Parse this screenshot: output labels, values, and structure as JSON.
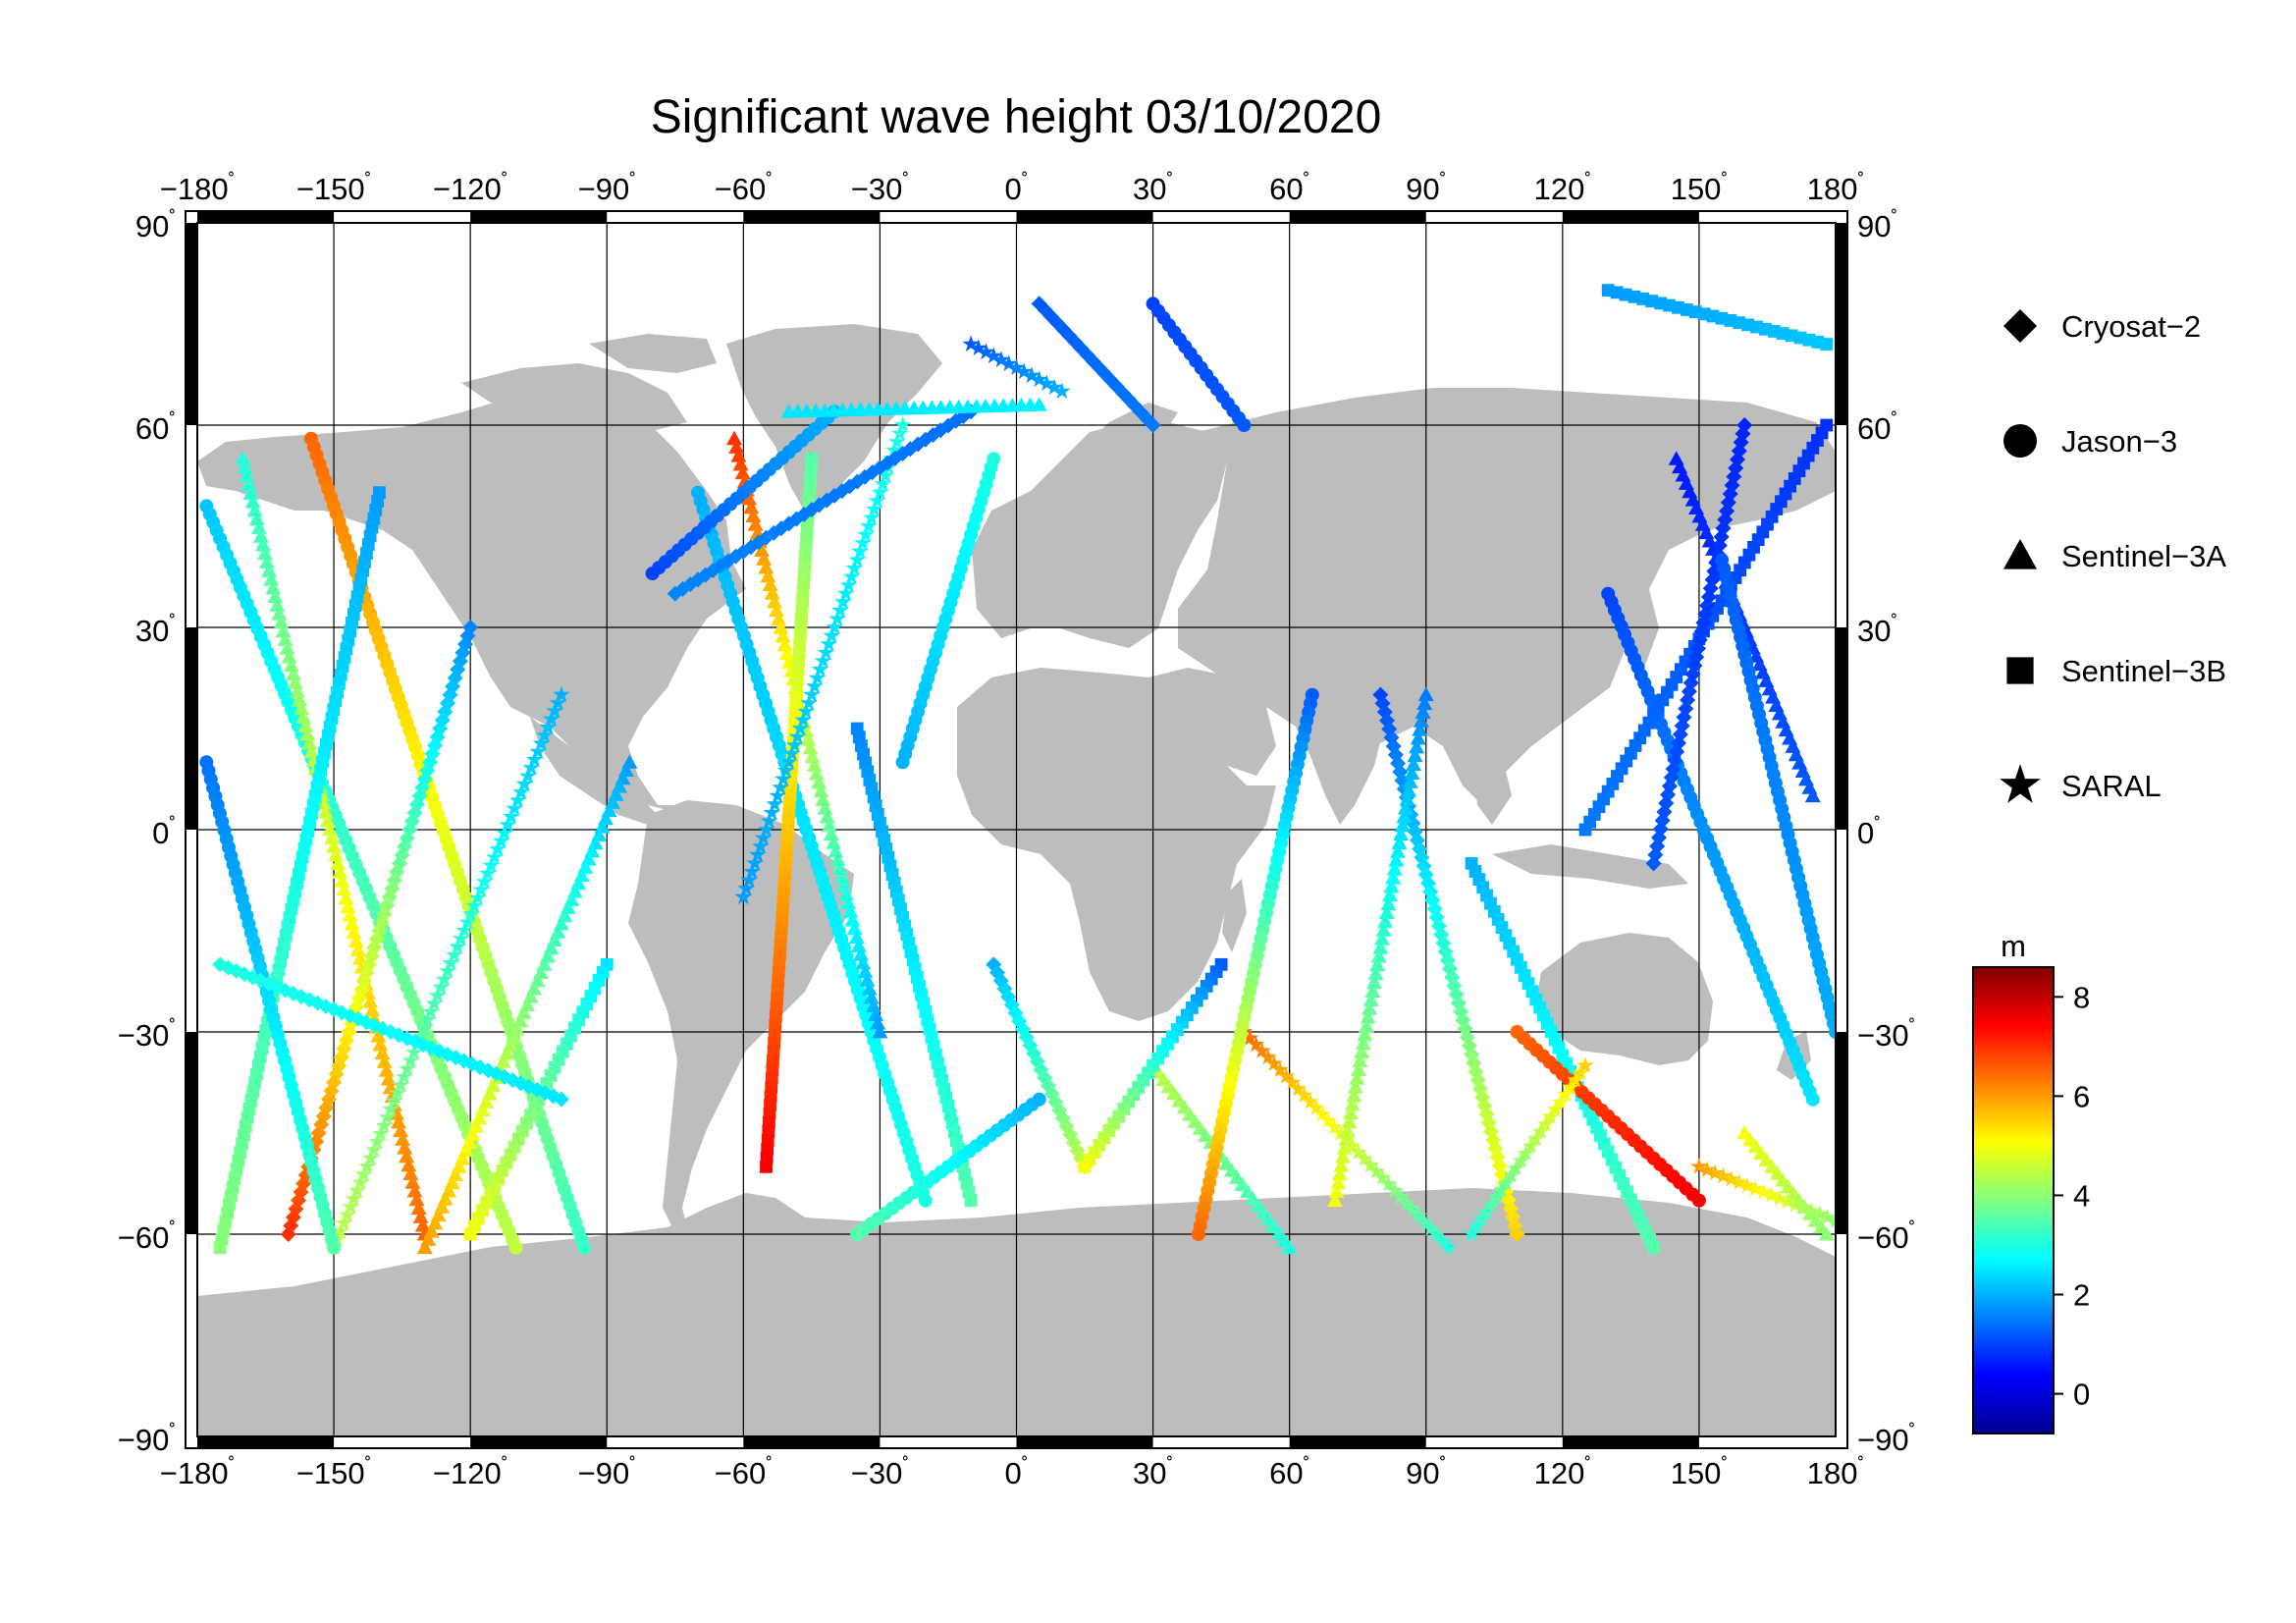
{
  "title": "Significant wave height 03/10/2020",
  "map": {
    "projection": "equirectangular",
    "lon_range": [
      -180,
      180
    ],
    "lat_range": [
      -90,
      90
    ],
    "land_color": "#bdbdbd",
    "ocean_color": "#ffffff",
    "grid": true,
    "lon_ticks": [
      {
        "value": -180,
        "label": "−180"
      },
      {
        "value": -150,
        "label": "−150"
      },
      {
        "value": -120,
        "label": "−120"
      },
      {
        "value": -90,
        "label": "−90"
      },
      {
        "value": -60,
        "label": "−60"
      },
      {
        "value": -30,
        "label": "−30"
      },
      {
        "value": 0,
        "label": "0"
      },
      {
        "value": 30,
        "label": "30"
      },
      {
        "value": 60,
        "label": "60"
      },
      {
        "value": 90,
        "label": "90"
      },
      {
        "value": 120,
        "label": "120"
      },
      {
        "value": 150,
        "label": "150"
      },
      {
        "value": 180,
        "label": "180"
      }
    ],
    "lat_ticks": [
      {
        "value": 90,
        "label": "90"
      },
      {
        "value": 60,
        "label": "60"
      },
      {
        "value": 30,
        "label": "30"
      },
      {
        "value": 0,
        "label": "0"
      },
      {
        "value": -30,
        "label": "−30"
      },
      {
        "value": -60,
        "label": "−60"
      },
      {
        "value": -90,
        "label": "−90"
      }
    ],
    "degree_symbol": "˚"
  },
  "legend": {
    "items": [
      {
        "label": "Cryosat−2",
        "marker": "diamond"
      },
      {
        "label": "Jason−3",
        "marker": "circle"
      },
      {
        "label": "Sentinel−3A",
        "marker": "triangle"
      },
      {
        "label": "Sentinel−3B",
        "marker": "square"
      },
      {
        "label": "SARAL",
        "marker": "star"
      }
    ]
  },
  "colorbar": {
    "unit": "m",
    "range": [
      -0.8,
      8.6
    ],
    "ticks": [
      {
        "value": 0,
        "label": "0"
      },
      {
        "value": 2,
        "label": "2"
      },
      {
        "value": 4,
        "label": "4"
      },
      {
        "value": 6,
        "label": "6"
      },
      {
        "value": 8,
        "label": "8"
      }
    ],
    "colormap": [
      "#00008f",
      "#0000ff",
      "#0080ff",
      "#00ffff",
      "#80ff80",
      "#ffff00",
      "#ff8000",
      "#ff0000",
      "#800000"
    ]
  },
  "tracks": [
    {
      "sat": "Jason−3",
      "start": [
        -178,
        48
      ],
      "end": [
        -110,
        -62
      ],
      "swh_start": 2.2,
      "swh_end": 4.5
    },
    {
      "sat": "Jason−3",
      "start": [
        -155,
        58
      ],
      "end": [
        -95,
        -62
      ],
      "swh_start": 6.5,
      "swh_end": 3.2
    },
    {
      "sat": "Sentinel−3A",
      "start": [
        -170,
        55
      ],
      "end": [
        -130,
        -60
      ],
      "swh_start": 3.0,
      "swh_end": 6.5
    },
    {
      "sat": "Sentinel−3B",
      "start": [
        -140,
        50
      ],
      "end": [
        -175,
        -62
      ],
      "swh_start": 1.8,
      "swh_end": 4.0
    },
    {
      "sat": "Cryosat−2",
      "start": [
        -120,
        30
      ],
      "end": [
        -160,
        -60
      ],
      "swh_start": 1.6,
      "swh_end": 7.0
    },
    {
      "sat": "SARAL",
      "start": [
        -100,
        20
      ],
      "end": [
        -150,
        -62
      ],
      "swh_start": 2.0,
      "swh_end": 4.5
    },
    {
      "sat": "Jason−3",
      "start": [
        -178,
        10
      ],
      "end": [
        -150,
        -62
      ],
      "swh_start": 1.4,
      "swh_end": 3.5
    },
    {
      "sat": "Sentinel−3A",
      "start": [
        -85,
        10
      ],
      "end": [
        -130,
        -62
      ],
      "swh_start": 1.8,
      "swh_end": 6.0
    },
    {
      "sat": "Sentinel−3B",
      "start": [
        -90,
        -20
      ],
      "end": [
        -120,
        -60
      ],
      "swh_start": 2.5,
      "swh_end": 5.0
    },
    {
      "sat": "Cryosat−2",
      "start": [
        -175,
        -20
      ],
      "end": [
        -100,
        -40
      ],
      "swh_start": 3.0,
      "swh_end": 2.5
    },
    {
      "sat": "Jason−3",
      "start": [
        -70,
        50
      ],
      "end": [
        -20,
        -55
      ],
      "swh_start": 2.0,
      "swh_end": 3.0
    },
    {
      "sat": "Sentinel−3A",
      "start": [
        -62,
        58
      ],
      "end": [
        -30,
        -30
      ],
      "swh_start": 7.0,
      "swh_end": 1.8
    },
    {
      "sat": "Sentinel−3B",
      "start": [
        -45,
        55
      ],
      "end": [
        -55,
        -50
      ],
      "swh_start": 3.5,
      "swh_end": 7.5
    },
    {
      "sat": "SARAL",
      "start": [
        -25,
        60
      ],
      "end": [
        -60,
        -10
      ],
      "swh_start": 3.0,
      "swh_end": 1.8
    },
    {
      "sat": "Cryosat−2",
      "start": [
        -10,
        62
      ],
      "end": [
        -75,
        35
      ],
      "swh_start": 1.4,
      "swh_end": 1.6
    },
    {
      "sat": "Jason−3",
      "start": [
        -80,
        38
      ],
      "end": [
        -40,
        62
      ],
      "swh_start": 1.0,
      "swh_end": 2.0
    },
    {
      "sat": "Sentinel−3A",
      "start": [
        -50,
        62
      ],
      "end": [
        5,
        63
      ],
      "swh_start": 2.5,
      "swh_end": 2.6
    },
    {
      "sat": "Jason−3",
      "start": [
        -5,
        55
      ],
      "end": [
        -25,
        10
      ],
      "swh_start": 3.0,
      "swh_end": 2.0
    },
    {
      "sat": "Sentinel−3B",
      "start": [
        -35,
        15
      ],
      "end": [
        -10,
        -55
      ],
      "swh_start": 1.6,
      "swh_end": 3.5
    },
    {
      "sat": "Cryosat−2",
      "start": [
        -5,
        -20
      ],
      "end": [
        15,
        -50
      ],
      "swh_start": 2.0,
      "swh_end": 4.5
    },
    {
      "sat": "Jason−3",
      "start": [
        5,
        -40
      ],
      "end": [
        -35,
        -60
      ],
      "swh_start": 2.0,
      "swh_end": 3.5
    },
    {
      "sat": "Sentinel−3A",
      "start": [
        30,
        -35
      ],
      "end": [
        60,
        -62
      ],
      "swh_start": 4.5,
      "swh_end": 3.0
    },
    {
      "sat": "Sentinel−3B",
      "start": [
        45,
        -20
      ],
      "end": [
        15,
        -50
      ],
      "swh_start": 1.2,
      "swh_end": 5.0
    },
    {
      "sat": "SARAL",
      "start": [
        50,
        -30
      ],
      "end": [
        95,
        -62
      ],
      "swh_start": 6.5,
      "swh_end": 3.0
    },
    {
      "sat": "Jason−3",
      "start": [
        65,
        20
      ],
      "end": [
        40,
        -60
      ],
      "swh_start": 1.2,
      "swh_end": 6.5
    },
    {
      "sat": "Cryosat−2",
      "start": [
        80,
        20
      ],
      "end": [
        110,
        -60
      ],
      "swh_start": 1.0,
      "swh_end": 5.5
    },
    {
      "sat": "Sentinel−3A",
      "start": [
        90,
        20
      ],
      "end": [
        70,
        -55
      ],
      "swh_start": 1.5,
      "swh_end": 5.0
    },
    {
      "sat": "Sentinel−3B",
      "start": [
        100,
        -5
      ],
      "end": [
        140,
        -62
      ],
      "swh_start": 2.0,
      "swh_end": 3.5
    },
    {
      "sat": "Jason−3",
      "start": [
        110,
        -30
      ],
      "end": [
        150,
        -55
      ],
      "swh_start": 6.5,
      "swh_end": 7.5
    },
    {
      "sat": "SARAL",
      "start": [
        125,
        -35
      ],
      "end": [
        100,
        -60
      ],
      "swh_start": 5.5,
      "swh_end": 3.0
    },
    {
      "sat": "Jason−3",
      "start": [
        130,
        35
      ],
      "end": [
        175,
        -40
      ],
      "swh_start": 1.0,
      "swh_end": 2.5
    },
    {
      "sat": "Sentinel−3A",
      "start": [
        145,
        55
      ],
      "end": [
        175,
        5
      ],
      "swh_start": 0.6,
      "swh_end": 1.2
    },
    {
      "sat": "Sentinel−3B",
      "start": [
        178,
        60
      ],
      "end": [
        125,
        0
      ],
      "swh_start": 0.8,
      "swh_end": 1.5
    },
    {
      "sat": "Cryosat−2",
      "start": [
        160,
        60
      ],
      "end": [
        140,
        -5
      ],
      "swh_start": 0.7,
      "swh_end": 1.2
    },
    {
      "sat": "Jason−3",
      "start": [
        155,
        40
      ],
      "end": [
        180,
        -30
      ],
      "swh_start": 1.2,
      "swh_end": 2.0
    },
    {
      "sat": "SARAL",
      "start": [
        150,
        -50
      ],
      "end": [
        180,
        -58
      ],
      "swh_start": 6.0,
      "swh_end": 4.0
    },
    {
      "sat": "Sentinel−3A",
      "start": [
        160,
        -45
      ],
      "end": [
        178,
        -60
      ],
      "swh_start": 5.0,
      "swh_end": 4.0
    },
    {
      "sat": "Sentinel−3B",
      "start": [
        130,
        80
      ],
      "end": [
        178,
        72
      ],
      "swh_start": 1.8,
      "swh_end": 2.2
    },
    {
      "sat": "Cryosat−2",
      "start": [
        5,
        78
      ],
      "end": [
        30,
        60
      ],
      "swh_start": 1.2,
      "swh_end": 1.5
    },
    {
      "sat": "Jason−3",
      "start": [
        30,
        78
      ],
      "end": [
        50,
        60
      ],
      "swh_start": 1.0,
      "swh_end": 1.2
    },
    {
      "sat": "SARAL",
      "start": [
        -10,
        72
      ],
      "end": [
        10,
        65
      ],
      "swh_start": 1.2,
      "swh_end": 2.0
    }
  ]
}
